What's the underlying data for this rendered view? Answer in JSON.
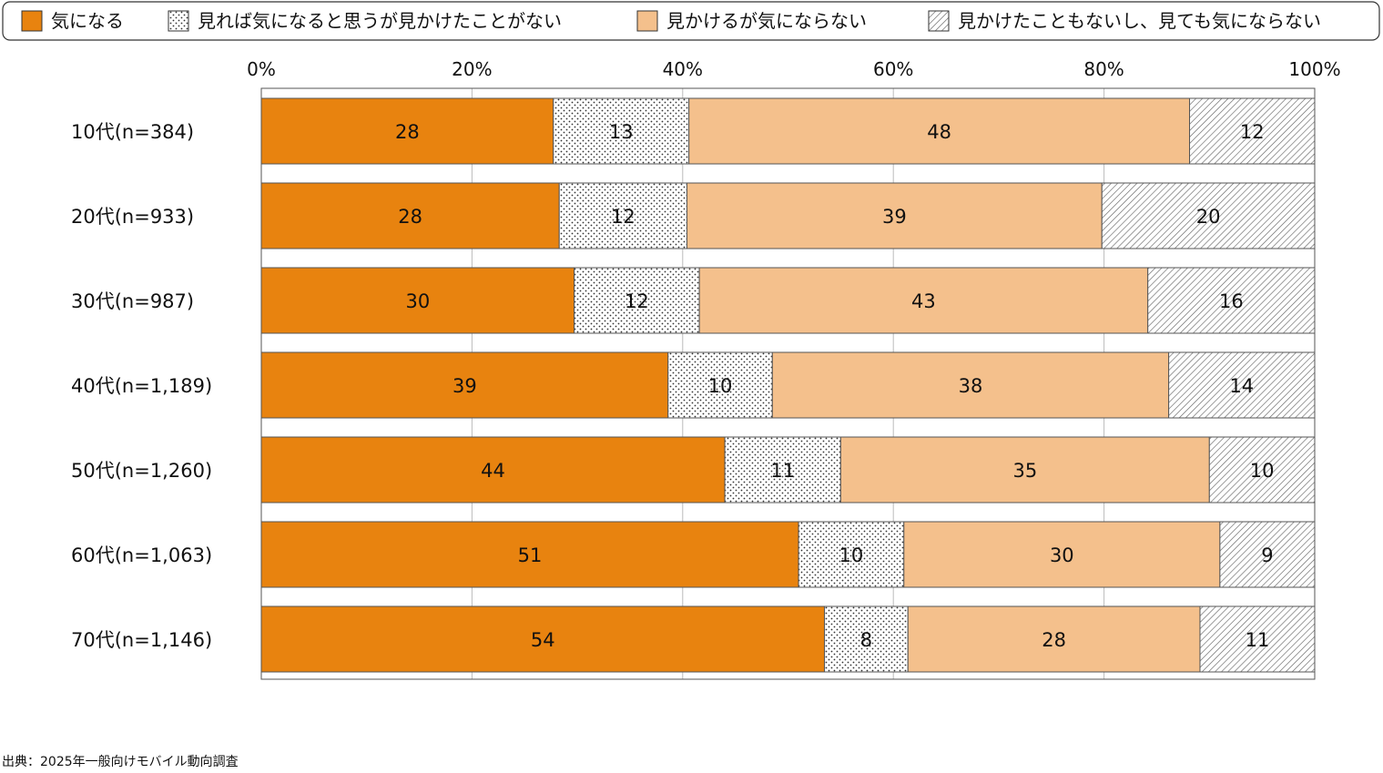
{
  "legend": [
    {
      "label": "気になる",
      "color": "#E8830F",
      "pattern": "solid"
    },
    {
      "label": "見れば気になると思うが見かけたことがない",
      "color": "#FFFFFF",
      "pattern": "dots"
    },
    {
      "label": "見かけるが気にならない",
      "color": "#F4C08C",
      "pattern": "solid"
    },
    {
      "label": "見かけたこともないし、見ても気にならない",
      "color": "#FFFFFF",
      "pattern": "hatch"
    }
  ],
  "source": "出典：2025年一般向けモバイル動向調査",
  "chart_data": {
    "type": "bar",
    "orientation": "horizontal",
    "stacked": "percent",
    "categories": [
      "10代(n=384)",
      "20代(n=933)",
      "30代(n=987)",
      "40代(n=1,189)",
      "50代(n=1,260)",
      "60代(n=1,063)",
      "70代(n=1,146)"
    ],
    "series": [
      {
        "name": "気になる",
        "values": [
          28,
          28,
          30,
          39,
          44,
          51,
          54
        ]
      },
      {
        "name": "見れば気になると思うが見かけたことがない",
        "values": [
          13,
          12,
          12,
          10,
          11,
          10,
          8
        ]
      },
      {
        "name": "見かけるが気にならない",
        "values": [
          48,
          39,
          43,
          38,
          35,
          30,
          28
        ]
      },
      {
        "name": "見かけたこともないし、見ても気にならない",
        "values": [
          12,
          20,
          16,
          14,
          10,
          9,
          11
        ]
      }
    ],
    "xlim": [
      0,
      100
    ],
    "xticks": [
      "0%",
      "20%",
      "40%",
      "60%",
      "80%",
      "100%"
    ],
    "legend_position": "top",
    "grid": true
  }
}
